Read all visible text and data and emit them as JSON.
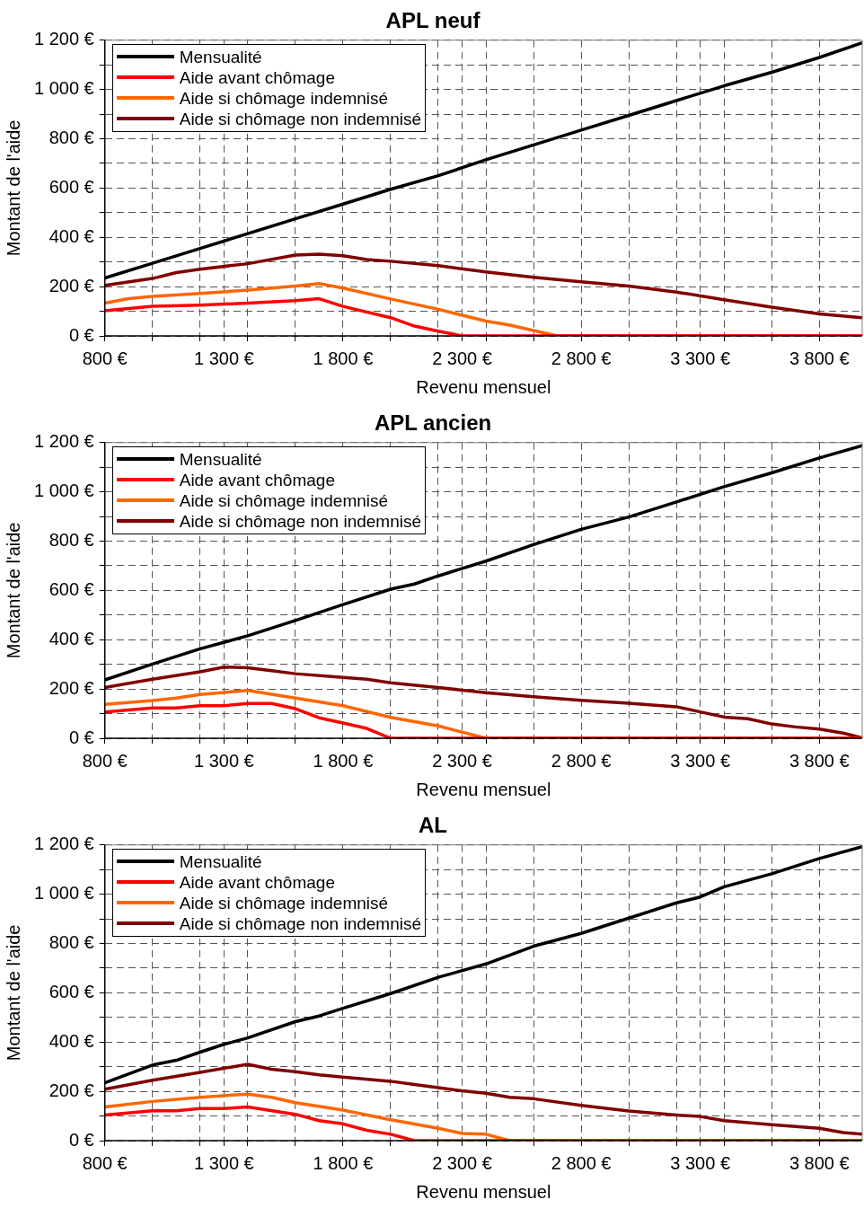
{
  "chart_data": [
    {
      "type": "line",
      "title": "APL neuf",
      "xlabel": "Revenu mensuel",
      "ylabel": "Montant de l'aide",
      "legend": "top left",
      "grid": true,
      "marker": "none",
      "line_style": "solid",
      "xlim": [
        800,
        3980
      ],
      "ylim": [
        0,
        1200
      ],
      "xticks": [
        {
          "value": 800,
          "label": "800 €"
        },
        {
          "value": 1000,
          "label": null
        },
        {
          "value": 1200,
          "label": null
        },
        {
          "value": 1300,
          "label": "1 300 €"
        },
        {
          "value": 1400,
          "label": null
        },
        {
          "value": 1600,
          "label": null
        },
        {
          "value": 1800,
          "label": "1 800 €"
        },
        {
          "value": 2000,
          "label": null
        },
        {
          "value": 2200,
          "label": null
        },
        {
          "value": 2300,
          "label": "2 300 €"
        },
        {
          "value": 2400,
          "label": null
        },
        {
          "value": 2600,
          "label": null
        },
        {
          "value": 2800,
          "label": "2 800 €"
        },
        {
          "value": 3000,
          "label": null
        },
        {
          "value": 3200,
          "label": null
        },
        {
          "value": 3300,
          "label": "3 300 €"
        },
        {
          "value": 3400,
          "label": null
        },
        {
          "value": 3600,
          "label": null
        },
        {
          "value": 3800,
          "label": "3 800 €"
        }
      ],
      "yticks": [
        {
          "value": 0,
          "label": "0 €"
        },
        {
          "value": 100,
          "label": null
        },
        {
          "value": 200,
          "label": "200 €"
        },
        {
          "value": 300,
          "label": null
        },
        {
          "value": 400,
          "label": "400 €"
        },
        {
          "value": 500,
          "label": null
        },
        {
          "value": 600,
          "label": "600 €"
        },
        {
          "value": 700,
          "label": null
        },
        {
          "value": 800,
          "label": "800 €"
        },
        {
          "value": 900,
          "label": null
        },
        {
          "value": 1000,
          "label": "1 000 €"
        },
        {
          "value": 1100,
          "label": null
        },
        {
          "value": 1200,
          "label": "1 200 €"
        }
      ],
      "series": [
        {
          "name": "Mensualité",
          "color": "#000000",
          "x": [
            800,
            1000,
            1200,
            1400,
            1600,
            1800,
            2000,
            2200,
            2400,
            2600,
            2800,
            3000,
            3200,
            3400,
            3600,
            3800,
            3980
          ],
          "values": [
            235,
            295,
            355,
            415,
            475,
            535,
            595,
            650,
            715,
            775,
            835,
            895,
            955,
            1015,
            1070,
            1130,
            1190
          ]
        },
        {
          "name": "Aide avant chômage",
          "color": "#ff0000",
          "x": [
            800,
            1000,
            1200,
            1400,
            1600,
            1700,
            1800,
            2000,
            2100,
            2200,
            2300,
            3980
          ],
          "values": [
            102,
            120,
            125,
            133,
            143,
            151,
            120,
            74,
            40,
            19,
            0,
            0
          ]
        },
        {
          "name": "Aide si chômage indemnisé",
          "color": "#ff6600",
          "x": [
            800,
            900,
            1000,
            1200,
            1400,
            1600,
            1700,
            1800,
            2000,
            2200,
            2400,
            2500,
            2700,
            3980
          ],
          "values": [
            133,
            151,
            160,
            172,
            186,
            202,
            212,
            194,
            150,
            108,
            60,
            44,
            0,
            0
          ]
        },
        {
          "name": "Aide si chômage non indemnisé",
          "color": "#800000",
          "x": [
            800,
            1000,
            1100,
            1200,
            1400,
            1600,
            1700,
            1800,
            1900,
            2000,
            2200,
            2400,
            2600,
            2800,
            3000,
            3200,
            3400,
            3600,
            3800,
            3980
          ],
          "values": [
            205,
            233,
            257,
            271,
            293,
            328,
            332,
            325,
            310,
            303,
            285,
            260,
            238,
            220,
            202,
            178,
            147,
            117,
            89,
            74
          ]
        }
      ]
    },
    {
      "type": "line",
      "title": "APL ancien",
      "xlabel": "Revenu mensuel",
      "ylabel": "Montant de l'aide",
      "legend": "top left",
      "grid": true,
      "marker": "none",
      "line_style": "solid",
      "xlim": [
        800,
        3980
      ],
      "ylim": [
        0,
        1200
      ],
      "xticks": [
        {
          "value": 800,
          "label": "800 €"
        },
        {
          "value": 1000,
          "label": null
        },
        {
          "value": 1200,
          "label": null
        },
        {
          "value": 1300,
          "label": "1 300 €"
        },
        {
          "value": 1400,
          "label": null
        },
        {
          "value": 1600,
          "label": null
        },
        {
          "value": 1800,
          "label": "1 800 €"
        },
        {
          "value": 2000,
          "label": null
        },
        {
          "value": 2200,
          "label": null
        },
        {
          "value": 2300,
          "label": "2 300 €"
        },
        {
          "value": 2400,
          "label": null
        },
        {
          "value": 2600,
          "label": null
        },
        {
          "value": 2800,
          "label": "2 800 €"
        },
        {
          "value": 3000,
          "label": null
        },
        {
          "value": 3200,
          "label": null
        },
        {
          "value": 3300,
          "label": "3 300 €"
        },
        {
          "value": 3400,
          "label": null
        },
        {
          "value": 3600,
          "label": null
        },
        {
          "value": 3800,
          "label": "3 800 €"
        }
      ],
      "yticks": [
        {
          "value": 0,
          "label": "0 €"
        },
        {
          "value": 100,
          "label": null
        },
        {
          "value": 200,
          "label": "200 €"
        },
        {
          "value": 300,
          "label": null
        },
        {
          "value": 400,
          "label": "400 €"
        },
        {
          "value": 500,
          "label": null
        },
        {
          "value": 600,
          "label": "600 €"
        },
        {
          "value": 700,
          "label": null
        },
        {
          "value": 800,
          "label": "800 €"
        },
        {
          "value": 900,
          "label": null
        },
        {
          "value": 1000,
          "label": "1 000 €"
        },
        {
          "value": 1100,
          "label": null
        },
        {
          "value": 1200,
          "label": "1 200 €"
        }
      ],
      "series": [
        {
          "name": "Mensualité",
          "color": "#000000",
          "x": [
            800,
            1000,
            1200,
            1400,
            1600,
            1800,
            2000,
            2100,
            2200,
            2400,
            2600,
            2800,
            3000,
            3200,
            3400,
            3600,
            3800,
            3980
          ],
          "values": [
            237,
            301,
            363,
            416,
            478,
            543,
            605,
            626,
            659,
            719,
            786,
            848,
            898,
            959,
            1021,
            1077,
            1138,
            1188
          ]
        },
        {
          "name": "Aide avant chômage",
          "color": "#ff0000",
          "x": [
            800,
            1000,
            1100,
            1200,
            1300,
            1400,
            1500,
            1600,
            1700,
            1800,
            1900,
            2000,
            3980
          ],
          "values": [
            107,
            123,
            123,
            132,
            132,
            141,
            141,
            120,
            83,
            62,
            40,
            0,
            0
          ]
        },
        {
          "name": "Aide si chômage indemnisé",
          "color": "#ff6600",
          "x": [
            800,
            1000,
            1100,
            1200,
            1400,
            1600,
            1800,
            2000,
            2200,
            2300,
            2400,
            3980
          ],
          "values": [
            138,
            153,
            163,
            178,
            194,
            163,
            132,
            85,
            50,
            25,
            0,
            0
          ]
        },
        {
          "name": "Aide si chômage non indemnisé",
          "color": "#800000",
          "x": [
            800,
            1000,
            1200,
            1300,
            1400,
            1500,
            1600,
            1800,
            1900,
            2000,
            2200,
            2400,
            2600,
            2800,
            3000,
            3200,
            3300,
            3400,
            3500,
            3600,
            3700,
            3800,
            3900,
            3980
          ],
          "values": [
            206,
            240,
            270,
            289,
            286,
            274,
            262,
            247,
            240,
            225,
            206,
            185,
            169,
            154,
            142,
            128,
            107,
            86,
            79,
            58,
            46,
            37,
            21,
            2
          ]
        }
      ]
    },
    {
      "type": "line",
      "title": "AL",
      "xlabel": "Revenu mensuel",
      "ylabel": "Montant de l'aide",
      "legend": "top left",
      "grid": true,
      "marker": "none",
      "line_style": "solid",
      "xlim": [
        800,
        3980
      ],
      "ylim": [
        0,
        1200
      ],
      "xticks": [
        {
          "value": 800,
          "label": "800 €"
        },
        {
          "value": 1000,
          "label": null
        },
        {
          "value": 1200,
          "label": null
        },
        {
          "value": 1300,
          "label": "1 300 €"
        },
        {
          "value": 1400,
          "label": null
        },
        {
          "value": 1600,
          "label": null
        },
        {
          "value": 1800,
          "label": "1 800 €"
        },
        {
          "value": 2000,
          "label": null
        },
        {
          "value": 2200,
          "label": null
        },
        {
          "value": 2300,
          "label": "2 300 €"
        },
        {
          "value": 2400,
          "label": null
        },
        {
          "value": 2600,
          "label": null
        },
        {
          "value": 2800,
          "label": "2 800 €"
        },
        {
          "value": 3000,
          "label": null
        },
        {
          "value": 3200,
          "label": null
        },
        {
          "value": 3300,
          "label": "3 300 €"
        },
        {
          "value": 3400,
          "label": null
        },
        {
          "value": 3600,
          "label": null
        },
        {
          "value": 3800,
          "label": "3 800 €"
        }
      ],
      "yticks": [
        {
          "value": 0,
          "label": "0 €"
        },
        {
          "value": 100,
          "label": null
        },
        {
          "value": 200,
          "label": "200 €"
        },
        {
          "value": 300,
          "label": null
        },
        {
          "value": 400,
          "label": "400 €"
        },
        {
          "value": 500,
          "label": null
        },
        {
          "value": 600,
          "label": "600 €"
        },
        {
          "value": 700,
          "label": null
        },
        {
          "value": 800,
          "label": "800 €"
        },
        {
          "value": 900,
          "label": null
        },
        {
          "value": 1000,
          "label": "1 000 €"
        },
        {
          "value": 1100,
          "label": null
        },
        {
          "value": 1200,
          "label": "1 200 €"
        }
      ],
      "series": [
        {
          "name": "Mensualité",
          "color": "#000000",
          "x": [
            800,
            1000,
            1100,
            1200,
            1300,
            1400,
            1600,
            1700,
            1800,
            2000,
            2200,
            2400,
            2600,
            2800,
            3000,
            3200,
            3300,
            3400,
            3600,
            3800,
            3980
          ],
          "values": [
            235,
            307,
            326,
            359,
            391,
            417,
            483,
            506,
            537,
            597,
            663,
            717,
            789,
            841,
            903,
            965,
            989,
            1030,
            1083,
            1145,
            1193
          ]
        },
        {
          "name": "Aide avant chômage",
          "color": "#ff0000",
          "x": [
            800,
            1000,
            1100,
            1200,
            1300,
            1400,
            1600,
            1700,
            1800,
            1900,
            2000,
            2100,
            3980
          ],
          "values": [
            104,
            121,
            121,
            130,
            130,
            137,
            107,
            81,
            68,
            42,
            26,
            0,
            0
          ]
        },
        {
          "name": "Aide si chômage indemnisé",
          "color": "#ff6600",
          "x": [
            800,
            1000,
            1200,
            1400,
            1500,
            1600,
            1800,
            2000,
            2200,
            2300,
            2400,
            2500,
            3980
          ],
          "values": [
            137,
            159,
            176,
            189,
            176,
            154,
            124,
            85,
            50,
            29,
            26,
            0,
            0
          ]
        },
        {
          "name": "Aide si chômage non indemnisé",
          "color": "#800000",
          "x": [
            800,
            1000,
            1200,
            1400,
            1500,
            1600,
            1700,
            1800,
            2000,
            2100,
            2200,
            2300,
            2400,
            2500,
            2600,
            2800,
            3000,
            3200,
            3300,
            3400,
            3600,
            3800,
            3900,
            3980
          ],
          "values": [
            209,
            245,
            277,
            310,
            290,
            280,
            267,
            258,
            241,
            228,
            215,
            202,
            192,
            176,
            170,
            143,
            120,
            104,
            98,
            81,
            65,
            50,
            33,
            26
          ]
        }
      ]
    }
  ]
}
